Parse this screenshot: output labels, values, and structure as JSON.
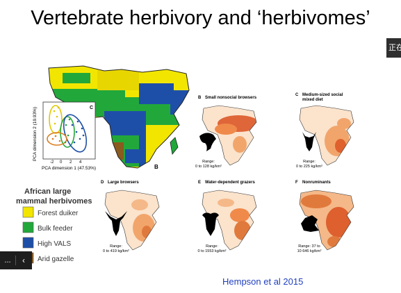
{
  "slide": {
    "title": "Vertebrate herbivory and ‘herbivomes’",
    "side_chip": "正在",
    "controls": {
      "dots": "...",
      "chevron": "‹"
    },
    "citation": "Hempson et al 2015"
  },
  "figure": {
    "pca": {
      "panel": "C",
      "ylabel": "PCA dimension 2 (19.93%)",
      "xlabel": "PCA dimension 1 (47.53%)",
      "ticks_x": [
        "-2",
        "0",
        "2",
        "4"
      ],
      "ticks_y": [
        "-2",
        "0",
        "2",
        "4"
      ]
    },
    "mainmap_panel": "B",
    "legend": {
      "title_line1": "African large",
      "title_line2": "mammal herbivomes",
      "items": [
        {
          "label": "Forest duiker",
          "color": "#f2e600"
        },
        {
          "label": "Bulk feeder",
          "color": "#22a83a"
        },
        {
          "label": "High VALS",
          "color": "#1e4fa8"
        },
        {
          "label": "Arid gazelle",
          "color": "#8a5a1e"
        }
      ]
    },
    "panels": [
      {
        "letter": "B",
        "title": "Small nonsocial browsers",
        "range1": "Range:",
        "range2": "0 to 128 kg/km²",
        "icon": "duiker-icon"
      },
      {
        "letter": "C",
        "title": "Medium-sized social",
        "title2": "mixed diet",
        "range1": "Range:",
        "range2": "0 to 225 kg/km²",
        "icon": "antelope-icon"
      },
      {
        "letter": "D",
        "title": "Large browsers",
        "range1": "Range:",
        "range2": "0 to 419 kg/km²",
        "icon": "kudu-icon"
      },
      {
        "letter": "E",
        "title": "Water-dependent grazers",
        "range1": "Range:",
        "range2": "0 to 1553 kg/km²",
        "icon": "buffalo-icon"
      },
      {
        "letter": "F",
        "title": "Nonruminants",
        "range1": "Range: 37 to",
        "range2": "10 646 kg/km²",
        "icon": "rhino-icon"
      }
    ]
  }
}
